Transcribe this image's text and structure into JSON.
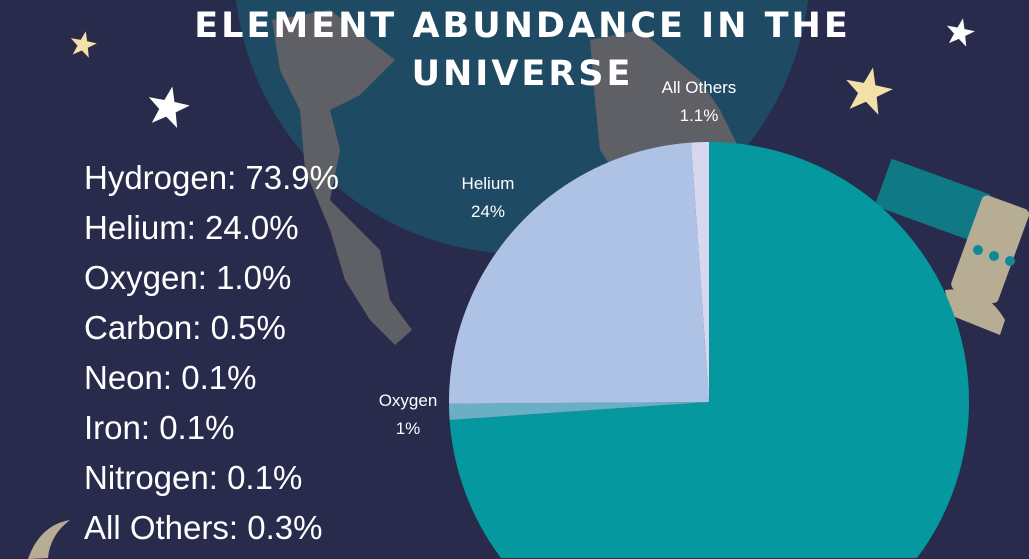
{
  "title_lines": [
    "ELEMENT ABUNDANCE IN THE",
    "UNIVERSE"
  ],
  "legend_items": [
    "Hydrogen: 73.9%",
    "Helium: 24.0%",
    "Oxygen: 1.0%",
    "Carbon: 0.5%",
    "Neon: 0.1%",
    "Iron: 0.1%",
    "Nitrogen: 0.1%",
    "All Others: 0.3%"
  ],
  "chart_data": {
    "type": "pie",
    "title": "ELEMENT ABUNDANCE IN THE UNIVERSE",
    "start": "top",
    "direction": "clockwise",
    "slices": [
      {
        "name": "Hydrogen",
        "value": 73.9,
        "label": "",
        "color": "#05989f"
      },
      {
        "name": "Oxygen",
        "value": 1.0,
        "label": "1%",
        "color": "#6aafc6"
      },
      {
        "name": "Helium",
        "value": 24.0,
        "label": "24%",
        "color": "#adc2e4"
      },
      {
        "name": "All Others",
        "value": 1.1,
        "label": "1.1%",
        "color": "#d7d8ef"
      }
    ]
  },
  "colors": {
    "background": "#282b4b",
    "ocean": "#1f4a63",
    "land": "#5f5f66",
    "star_white": "#ffffff",
    "star_cream": "#f3dfa8"
  }
}
